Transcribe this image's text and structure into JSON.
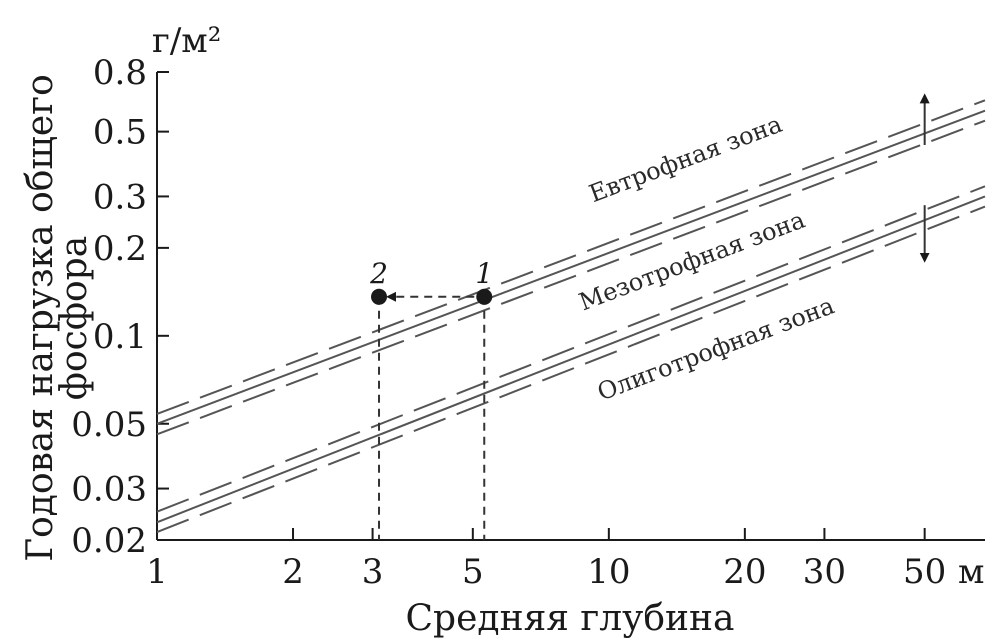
{
  "chart_data": {
    "type": "line",
    "x_scale": "log",
    "y_scale": "log",
    "xlim": [
      1,
      68
    ],
    "ylim": [
      0.02,
      0.8
    ],
    "xlabel": "Средняя глубина",
    "x_unit": "м",
    "y_unit": "г/м²",
    "ylabel_lines": [
      "Годовая нагрузка общего",
      "фосфора"
    ],
    "x_ticks": [
      {
        "value": 1,
        "label": "1"
      },
      {
        "value": 2,
        "label": "2"
      },
      {
        "value": 3,
        "label": "3"
      },
      {
        "value": 5,
        "label": "5"
      },
      {
        "value": 10,
        "label": "10"
      },
      {
        "value": 20,
        "label": "20"
      },
      {
        "value": 30,
        "label": "30"
      },
      {
        "value": 50,
        "label": "50"
      }
    ],
    "y_ticks": [
      {
        "value": 0.02,
        "label": "0.02"
      },
      {
        "value": 0.03,
        "label": "0.03"
      },
      {
        "value": 0.05,
        "label": "0.05"
      },
      {
        "value": 0.1,
        "label": "0.1"
      },
      {
        "value": 0.2,
        "label": "0.2"
      },
      {
        "value": 0.3,
        "label": "0.3"
      },
      {
        "value": 0.5,
        "label": "0.5"
      },
      {
        "value": 0.8,
        "label": "0.8"
      }
    ],
    "boundaries": [
      {
        "solid": [
          [
            1,
            0.05
          ],
          [
            68,
            0.59
          ]
        ],
        "dashed": [
          [
            [
              1,
              0.054
            ],
            [
              68,
              0.64
            ]
          ],
          [
            [
              1,
              0.046
            ],
            [
              68,
              0.545
            ]
          ]
        ]
      },
      {
        "solid": [
          [
            1,
            0.023
          ],
          [
            68,
            0.3
          ]
        ],
        "dashed": [
          [
            [
              1,
              0.025
            ],
            [
              68,
              0.325
            ]
          ],
          [
            [
              1,
              0.0213
            ],
            [
              68,
              0.277
            ]
          ]
        ]
      }
    ],
    "zones": [
      {
        "label": "Евтрофная зона",
        "x": 15,
        "y": 0.38
      },
      {
        "label": "Мезотрофная зона",
        "x": 15.5,
        "y": 0.17
      },
      {
        "label": "Олиготрофная зона",
        "x": 17.5,
        "y": 0.085
      }
    ],
    "points": [
      {
        "label": "1",
        "x": 5.3,
        "y": 0.136
      },
      {
        "label": "2",
        "x": 3.1,
        "y": 0.136
      }
    ],
    "arrow": {
      "from": "1",
      "to": "2"
    },
    "range_arrow": {
      "x": 50,
      "y_up": [
        0.45,
        0.65
      ],
      "y_down": [
        0.28,
        0.185
      ]
    }
  }
}
